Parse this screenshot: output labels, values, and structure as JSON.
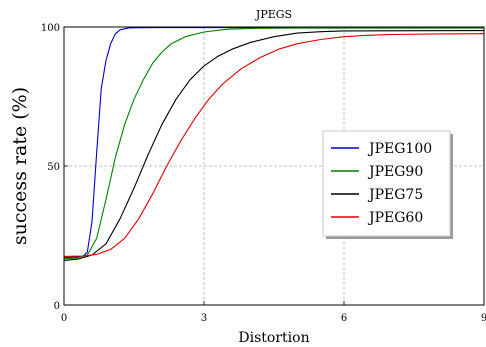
{
  "chart_data": {
    "type": "line",
    "title": "JPEGS",
    "xlabel": "Distortion",
    "ylabel": "success rate (%)",
    "xlim": [
      0,
      9
    ],
    "ylim": [
      0,
      100
    ],
    "xticks": [
      0,
      3,
      6,
      9
    ],
    "xtick_labels": [
      "0",
      "3",
      "6",
      "9"
    ],
    "yticks": [
      0,
      50,
      100
    ],
    "ytick_labels": [
      "0",
      "50",
      "100"
    ],
    "grid": true,
    "legend_position": "center-right",
    "series": [
      {
        "name": "JPEG100",
        "color": "#0000cc",
        "points": [
          [
            0,
            17
          ],
          [
            0.4,
            17.5
          ],
          [
            0.5,
            19
          ],
          [
            0.6,
            30
          ],
          [
            0.7,
            55
          ],
          [
            0.8,
            78
          ],
          [
            0.9,
            88
          ],
          [
            1.0,
            94
          ],
          [
            1.1,
            97.5
          ],
          [
            1.2,
            99
          ],
          [
            1.4,
            99.7
          ],
          [
            2,
            99.8
          ],
          [
            9,
            99.8
          ]
        ]
      },
      {
        "name": "JPEG90",
        "color": "#007f00",
        "points": [
          [
            0,
            16.5
          ],
          [
            0.3,
            17
          ],
          [
            0.5,
            18
          ],
          [
            0.7,
            24
          ],
          [
            0.9,
            38
          ],
          [
            1.1,
            53
          ],
          [
            1.3,
            65
          ],
          [
            1.5,
            74
          ],
          [
            1.7,
            81
          ],
          [
            1.9,
            87
          ],
          [
            2.1,
            91
          ],
          [
            2.3,
            94
          ],
          [
            2.6,
            96.5
          ],
          [
            3.0,
            98.2
          ],
          [
            3.5,
            99.2
          ],
          [
            4,
            99.5
          ],
          [
            5,
            99.6
          ],
          [
            9,
            99.6
          ]
        ]
      },
      {
        "name": "JPEG75",
        "color": "#000000",
        "points": [
          [
            0,
            16
          ],
          [
            0.3,
            16.5
          ],
          [
            0.6,
            18
          ],
          [
            0.9,
            22
          ],
          [
            1.2,
            31
          ],
          [
            1.5,
            42
          ],
          [
            1.8,
            54
          ],
          [
            2.1,
            65
          ],
          [
            2.4,
            74
          ],
          [
            2.7,
            81
          ],
          [
            3.0,
            86
          ],
          [
            3.3,
            89.5
          ],
          [
            3.6,
            92
          ],
          [
            4.0,
            94.5
          ],
          [
            4.5,
            96.5
          ],
          [
            5,
            97.8
          ],
          [
            5.5,
            98.3
          ],
          [
            6,
            98.6
          ],
          [
            9,
            98.7
          ]
        ]
      },
      {
        "name": "JPEG60",
        "color": "#dd0000",
        "points": [
          [
            0,
            17.5
          ],
          [
            0.4,
            17.6
          ],
          [
            0.7,
            18.2
          ],
          [
            1.0,
            20
          ],
          [
            1.3,
            24
          ],
          [
            1.6,
            31
          ],
          [
            1.9,
            40
          ],
          [
            2.2,
            50
          ],
          [
            2.5,
            59
          ],
          [
            2.8,
            67
          ],
          [
            3.1,
            74
          ],
          [
            3.4,
            79.5
          ],
          [
            3.8,
            85
          ],
          [
            4.2,
            89
          ],
          [
            4.6,
            92
          ],
          [
            5,
            94
          ],
          [
            5.5,
            95.5
          ],
          [
            6,
            96.5
          ],
          [
            6.5,
            97
          ],
          [
            7,
            97.3
          ],
          [
            8,
            97.5
          ],
          [
            9,
            97.6
          ]
        ]
      }
    ]
  }
}
